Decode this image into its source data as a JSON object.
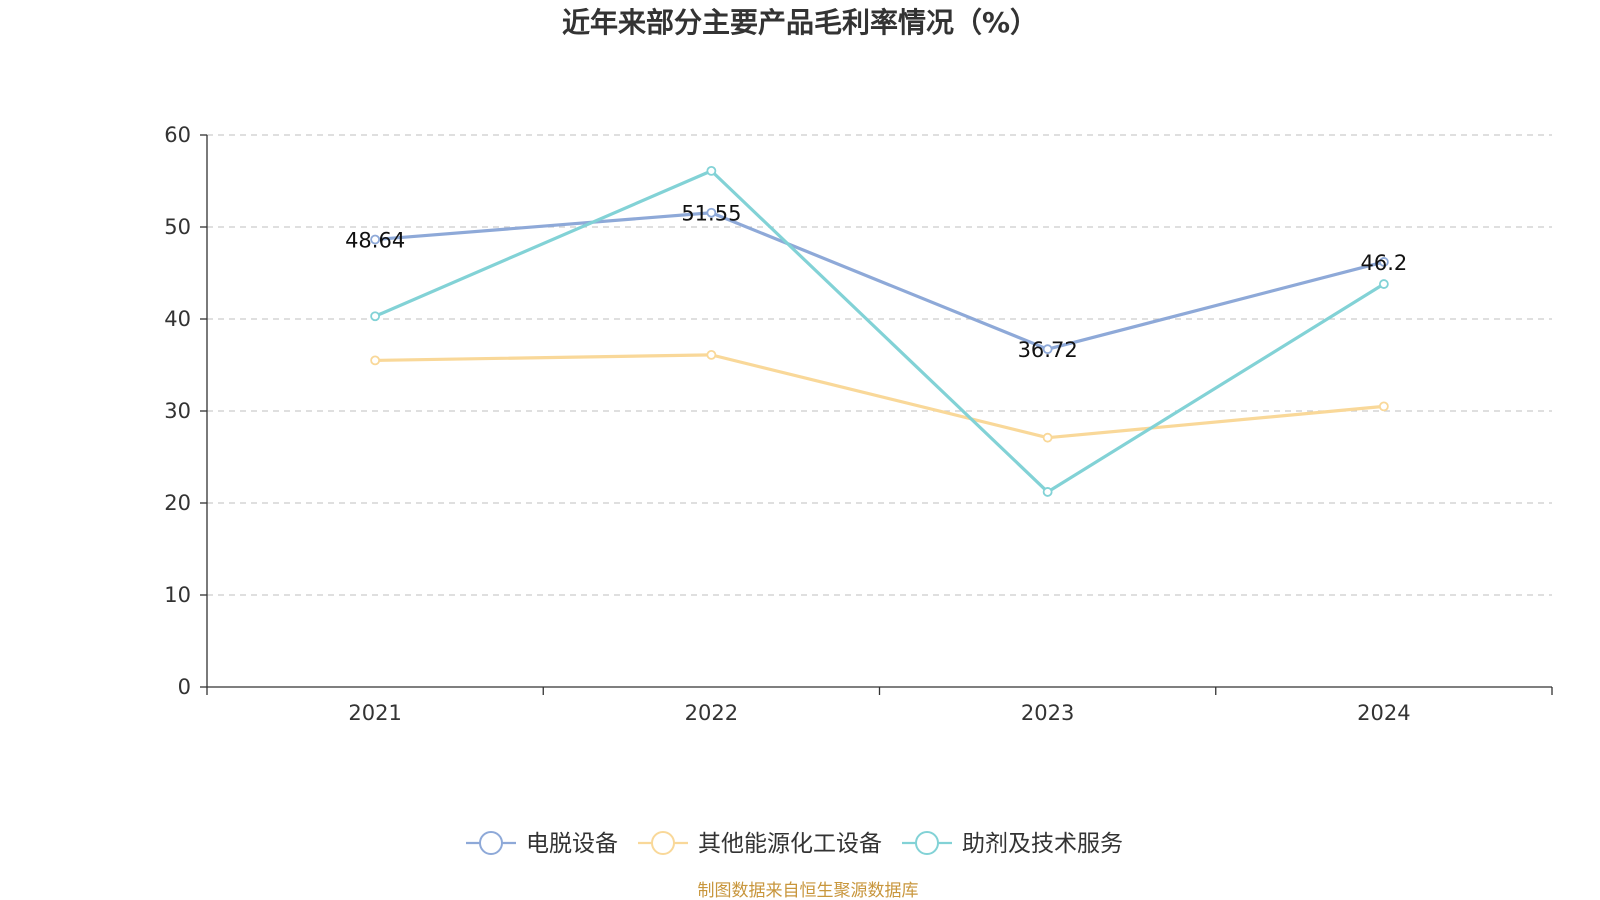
{
  "chart_data": {
    "type": "line",
    "title": "近年来部分主要产品毛利率情况（%）",
    "categories": [
      "2021",
      "2022",
      "2023",
      "2024"
    ],
    "ylim": [
      0,
      60
    ],
    "yticks": [
      0,
      10,
      20,
      30,
      40,
      50,
      60
    ],
    "grid": true,
    "legend_position": "bottom",
    "series": [
      {
        "name": "电脱设备",
        "color": "#8ea9d8",
        "values": [
          48.64,
          51.55,
          36.72,
          46.2
        ],
        "labels": [
          "48.64",
          "51.55",
          "36.72",
          "46.2"
        ]
      },
      {
        "name": "其他能源化工设备",
        "color": "#f9d899",
        "values": [
          35.5,
          36.1,
          27.1,
          30.5
        ]
      },
      {
        "name": "助剂及技术服务",
        "color": "#82d2d6",
        "values": [
          40.3,
          56.1,
          21.2,
          43.8
        ]
      }
    ],
    "source": "制图数据来自恒生聚源数据库"
  }
}
